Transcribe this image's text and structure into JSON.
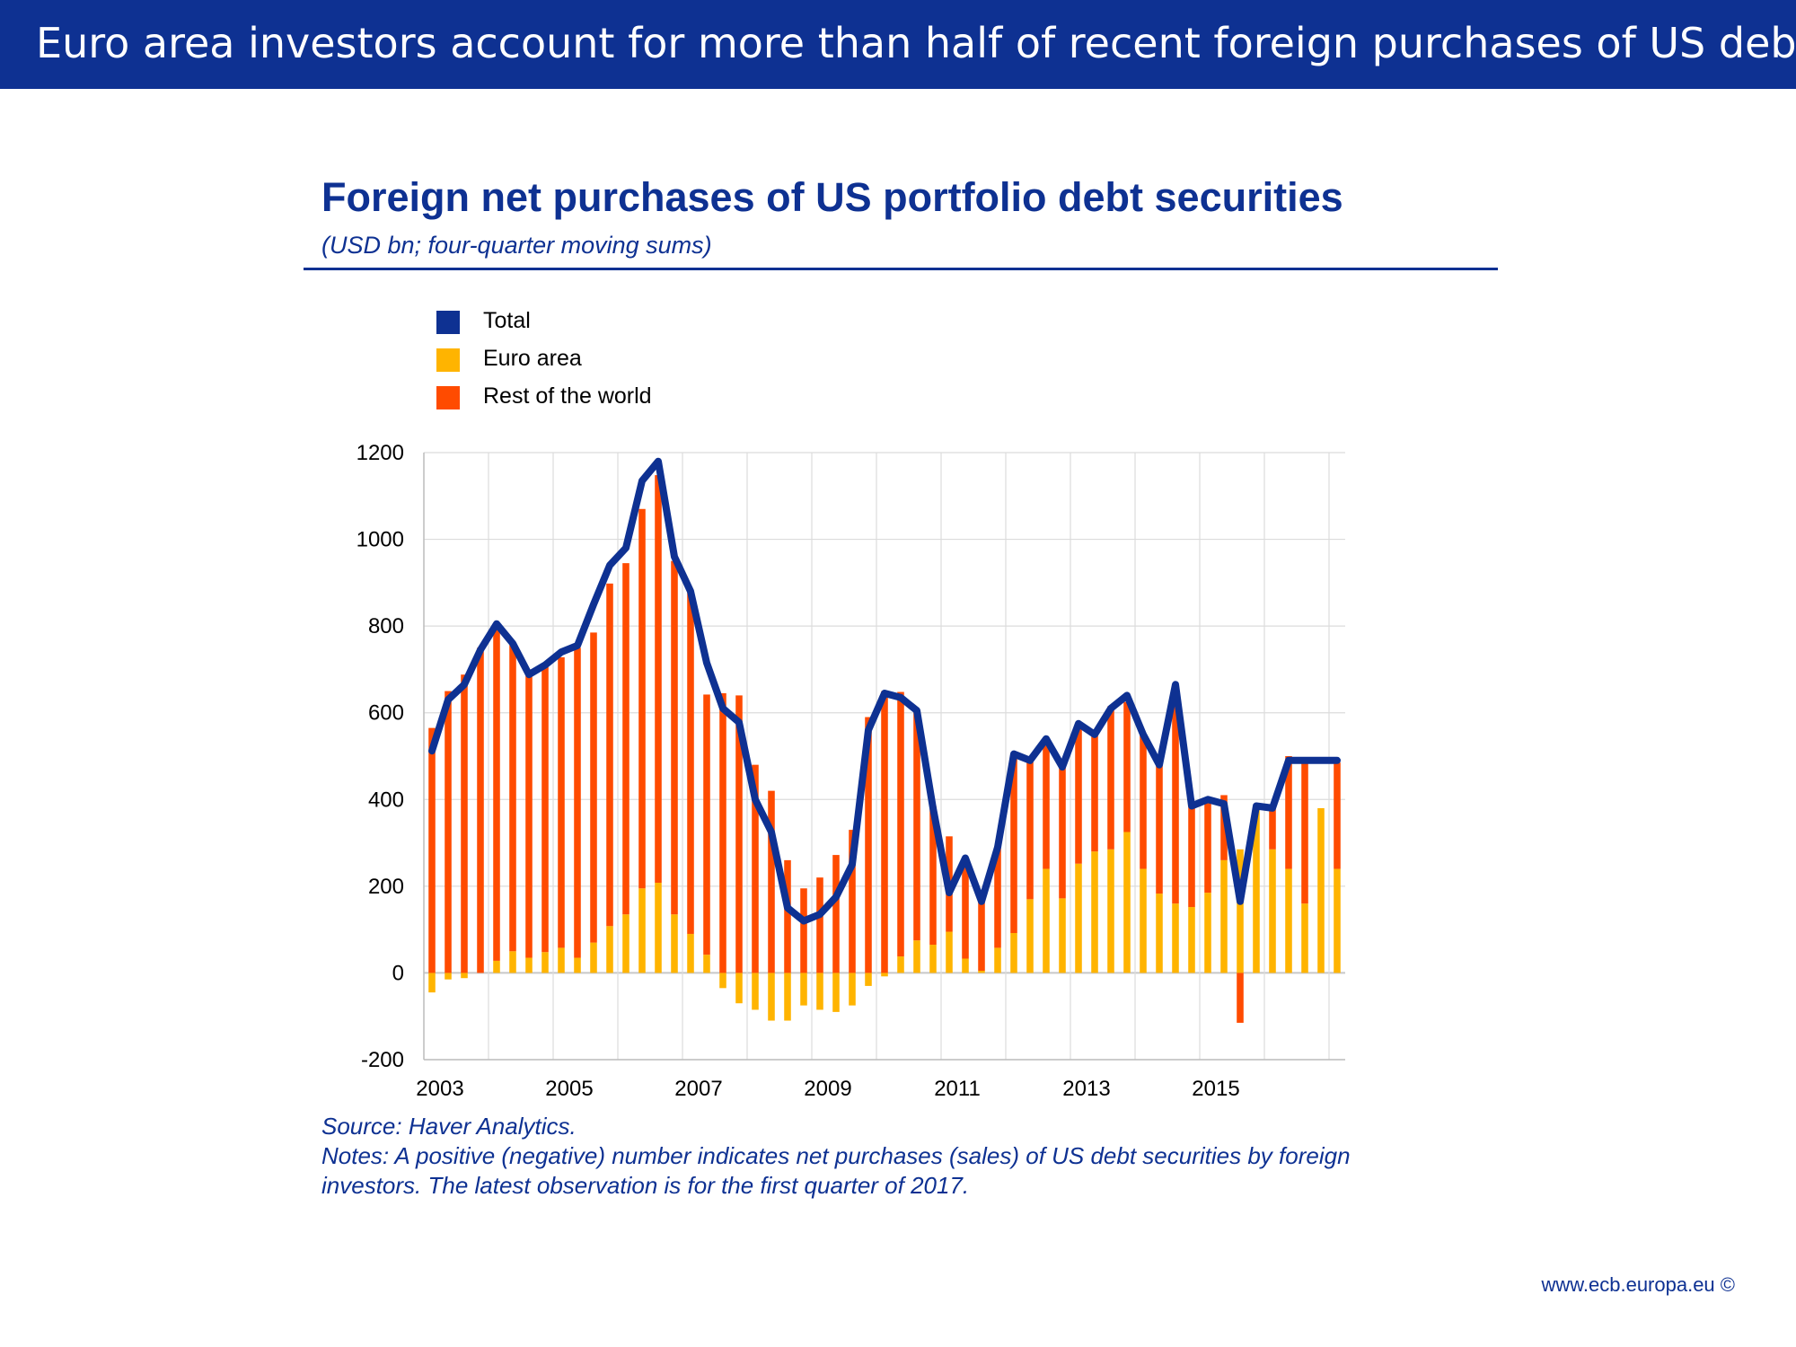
{
  "banner": {
    "title": "Euro area investors account for more than half of recent foreign purchases of US debt"
  },
  "chart_data": {
    "type": "bar",
    "title": "Foreign net purchases of US portfolio debt securities",
    "subtitle": "(USD bn; four-quarter moving sums)",
    "xlabel": "",
    "ylabel": "",
    "ylim": [
      -200,
      1200
    ],
    "yticks": [
      -200,
      0,
      200,
      400,
      600,
      800,
      1000,
      1200
    ],
    "xtick_labels": [
      "2003",
      "2005",
      "2007",
      "2009",
      "2011",
      "2013",
      "2015"
    ],
    "grid": true,
    "legend": [
      "Total",
      "Euro area",
      "Rest of the world"
    ],
    "colors": {
      "total": "#0e3192",
      "euro_area": "#ffb400",
      "rest_of_world": "#ff4b00"
    },
    "categories": [
      "2003Q1",
      "2003Q2",
      "2003Q3",
      "2003Q4",
      "2004Q1",
      "2004Q2",
      "2004Q3",
      "2004Q4",
      "2005Q1",
      "2005Q2",
      "2005Q3",
      "2005Q4",
      "2006Q1",
      "2006Q2",
      "2006Q3",
      "2006Q4",
      "2007Q1",
      "2007Q2",
      "2007Q3",
      "2007Q4",
      "2008Q1",
      "2008Q2",
      "2008Q3",
      "2008Q4",
      "2009Q1",
      "2009Q2",
      "2009Q3",
      "2009Q4",
      "2010Q1",
      "2010Q2",
      "2010Q3",
      "2010Q4",
      "2011Q1",
      "2011Q2",
      "2011Q3",
      "2011Q4",
      "2012Q1",
      "2012Q2",
      "2012Q3",
      "2012Q4",
      "2013Q1",
      "2013Q2",
      "2013Q3",
      "2013Q4",
      "2014Q1",
      "2014Q2",
      "2014Q3",
      "2014Q4",
      "2015Q1",
      "2015Q2",
      "2015Q3",
      "2015Q4",
      "2016Q1",
      "2016Q2",
      "2016Q3",
      "2016Q4",
      "2017Q1"
    ],
    "series": [
      {
        "name": "Euro area",
        "kind": "bar",
        "values": [
          -45,
          -15,
          -12,
          0,
          28,
          50,
          35,
          48,
          58,
          35,
          70,
          108,
          135,
          195,
          208,
          135,
          90,
          42,
          -35,
          -70,
          -85,
          -110,
          -110,
          -75,
          -85,
          -90,
          -75,
          -30,
          -8,
          38,
          75,
          65,
          95,
          33,
          5,
          58,
          92,
          170,
          240,
          172,
          252,
          280,
          285,
          325,
          240,
          183,
          160,
          152,
          185,
          260,
          285,
          380,
          285,
          240,
          160,
          380,
          240
        ]
      },
      {
        "name": "Rest of the world",
        "kind": "bar",
        "values": [
          565,
          650,
          688,
          750,
          770,
          708,
          650,
          665,
          670,
          715,
          715,
          790,
          810,
          875,
          940,
          815,
          790,
          600,
          645,
          640,
          480,
          420,
          260,
          195,
          220,
          272,
          330,
          590,
          650,
          610,
          530,
          320,
          220,
          220,
          160,
          235,
          410,
          330,
          290,
          310,
          320,
          270,
          330,
          300,
          310,
          300,
          490,
          235,
          210,
          150,
          -115,
          0,
          95,
          260,
          330,
          0,
          245
        ]
      },
      {
        "name": "Total",
        "kind": "line",
        "values": [
          512,
          630,
          665,
          745,
          805,
          760,
          688,
          710,
          740,
          755,
          850,
          940,
          980,
          1135,
          1180,
          960,
          880,
          715,
          610,
          578,
          400,
          325,
          150,
          120,
          135,
          175,
          250,
          560,
          645,
          635,
          605,
          380,
          185,
          265,
          165,
          290,
          505,
          490,
          540,
          475,
          575,
          550,
          610,
          640,
          550,
          480,
          665,
          385,
          400,
          390,
          165,
          385,
          380,
          490,
          490,
          490,
          490
        ]
      }
    ]
  },
  "legend": [
    {
      "label": "Total",
      "color": "#0e3192"
    },
    {
      "label": "Euro area",
      "color": "#ffb400"
    },
    {
      "label": "Rest of the world",
      "color": "#ff4b00"
    }
  ],
  "notes": {
    "source": "Source: Haver Analytics.",
    "line1": "Notes: A positive (negative) number indicates net purchases (sales) of US debt securities by foreign",
    "line2": "investors. The latest observation is for the first quarter of 2017."
  },
  "footer": {
    "url": "www.ecb.europa.eu ©"
  }
}
